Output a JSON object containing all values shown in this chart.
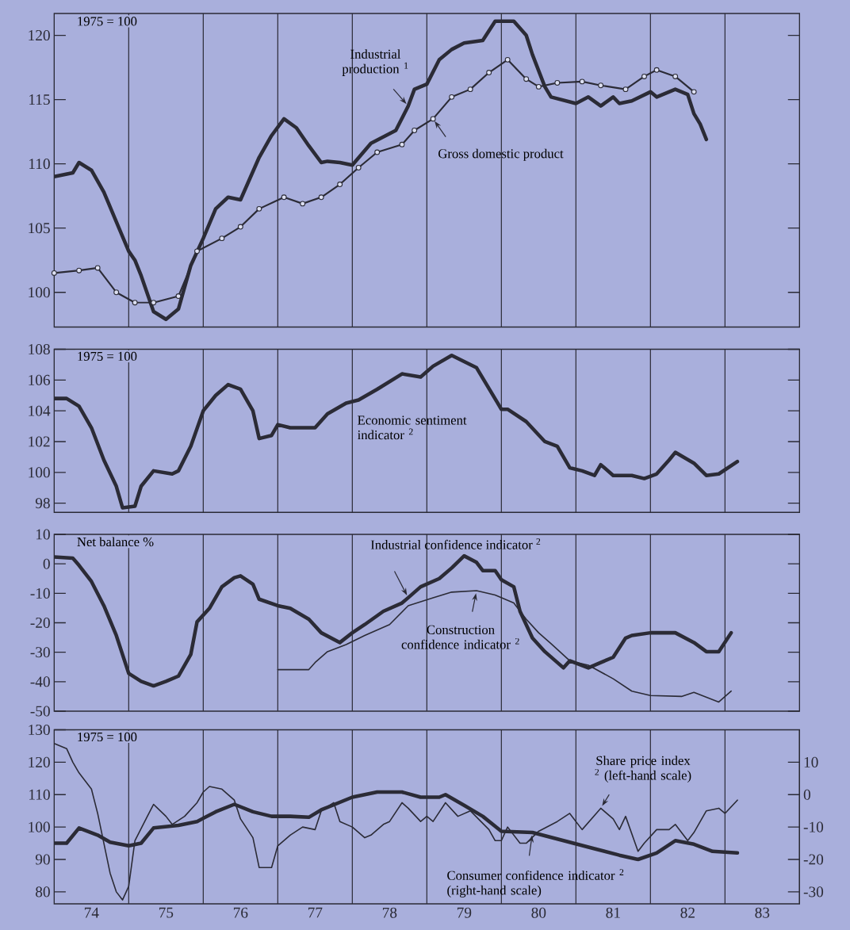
{
  "chart_data": [
    {
      "type": "line",
      "xlim": [
        "1974-01-01",
        "1984-01-01"
      ],
      "ylim": [
        97.3,
        121.7
      ],
      "yticks": [
        100,
        105,
        110,
        115,
        120
      ],
      "tick_labels": "y",
      "ref_lines": [
        {
          "axis": "x",
          "value": "1975-01-01"
        },
        {
          "axis": "x",
          "value": "1976-01-01"
        },
        {
          "axis": "x",
          "value": "1977-01-01"
        },
        {
          "axis": "x",
          "value": "1978-01-01"
        },
        {
          "axis": "x",
          "value": "1979-01-01"
        },
        {
          "axis": "x",
          "value": "1980-01-01"
        },
        {
          "axis": "x",
          "value": "1981-01-01"
        },
        {
          "axis": "x",
          "value": "1982-01-01"
        },
        {
          "axis": "x",
          "value": "1983-01-01"
        }
      ],
      "annotations": [
        "1975 = 100"
      ],
      "series": [
        {
          "name": "Industrial production $^{1}$",
          "color": "#2b2b36",
          "x": [
            "1974-01",
            "1974-04",
            "1974-05",
            "1974-07",
            "1974-09",
            "1974-11",
            "1975-01",
            "1975-02",
            "1975-03",
            "1975-05",
            "1975-07",
            "1975-09",
            "1975-11",
            "1976-01",
            "1976-03",
            "1976-05",
            "1976-07",
            "1976-10",
            "1976-12",
            "1977-02",
            "1977-04",
            "1977-06",
            "1977-08",
            "1977-09",
            "1977-11",
            "1978-01",
            "1978-04",
            "1978-08",
            "1978-10",
            "1978-11",
            "1979-01",
            "1979-03",
            "1979-05",
            "1979-07",
            "1979-10",
            "1979-12",
            "1980-03",
            "1980-05",
            "1980-06",
            "1980-08",
            "1980-09",
            "1981-01",
            "1981-03",
            "1981-05",
            "1981-07",
            "1981-08",
            "1981-10",
            "1982-01",
            "1982-02",
            "1982-04",
            "1982-05",
            "1982-07",
            "1982-08",
            "1982-09",
            "1982-10"
          ],
          "values": [
            109.0,
            109.3,
            110.1,
            109.5,
            107.8,
            105.5,
            103.2,
            102.5,
            101.3,
            98.5,
            97.9,
            98.7,
            102.1,
            104.2,
            106.5,
            107.4,
            107.2,
            110.5,
            112.2,
            113.5,
            112.8,
            111.4,
            110.1,
            110.2,
            110.1,
            109.9,
            111.6,
            112.6,
            114.5,
            115.8,
            116.2,
            118.1,
            118.9,
            119.4,
            119.6,
            121.1,
            121.1,
            120.0,
            118.5,
            116.0,
            115.2,
            114.7,
            115.2,
            114.5,
            115.2,
            114.7,
            114.9,
            115.6,
            115.2,
            115.6,
            115.8,
            115.4,
            113.9,
            113.1,
            111.9
          ]
        },
        {
          "name": "Gross domestic product",
          "color": "#2b2b36",
          "marker": "circle",
          "x": [
            "1974-01",
            "1974-05",
            "1974-08",
            "1974-11",
            "1975-02",
            "1975-05",
            "1975-09",
            "1975-12",
            "1976-04",
            "1976-07",
            "1976-10",
            "1977-02",
            "1977-05",
            "1977-08",
            "1977-11",
            "1978-02",
            "1978-05",
            "1978-09",
            "1978-11",
            "1979-02",
            "1979-05",
            "1979-08",
            "1979-11",
            "1980-02",
            "1980-05",
            "1980-07",
            "1980-10",
            "1981-02",
            "1981-05",
            "1981-09",
            "1981-12",
            "1982-02",
            "1982-05",
            "1982-08"
          ],
          "values": [
            101.5,
            101.7,
            101.9,
            100.0,
            99.2,
            99.2,
            99.7,
            103.2,
            104.2,
            105.1,
            106.5,
            107.4,
            106.9,
            107.4,
            108.4,
            109.7,
            110.9,
            111.5,
            112.6,
            113.5,
            115.2,
            115.8,
            117.1,
            118.1,
            116.6,
            116.0,
            116.3,
            116.4,
            116.1,
            115.8,
            116.8,
            117.3,
            116.8,
            115.6
          ]
        }
      ]
    },
    {
      "type": "line",
      "xlim": [
        "1974-01-01",
        "1984-01-01"
      ],
      "ylim": [
        97.4,
        108
      ],
      "yticks": [
        98,
        100,
        102,
        104,
        106,
        108
      ],
      "tick_labels": "y",
      "ref_lines": [
        {
          "axis": "x",
          "value": "1975-01-01"
        },
        {
          "axis": "x",
          "value": "1976-01-01"
        },
        {
          "axis": "x",
          "value": "1977-01-01"
        },
        {
          "axis": "x",
          "value": "1978-01-01"
        },
        {
          "axis": "x",
          "value": "1979-01-01"
        },
        {
          "axis": "x",
          "value": "1980-01-01"
        },
        {
          "axis": "x",
          "value": "1981-01-01"
        },
        {
          "axis": "x",
          "value": "1982-01-01"
        },
        {
          "axis": "x",
          "value": "1983-01-01"
        }
      ],
      "annotations": [
        "1975 = 100"
      ],
      "series": [
        {
          "name": "Economic sentiment indicator $^{2}$",
          "color": "#2b2b36",
          "x": [
            "1974-01",
            "1974-03",
            "1974-05",
            "1974-07",
            "1974-09",
            "1974-11",
            "1974-12",
            "1975-02",
            "1975-03",
            "1975-05",
            "1975-08",
            "1975-09",
            "1975-11",
            "1976-01",
            "1976-03",
            "1976-05",
            "1976-07",
            "1976-09",
            "1976-10",
            "1976-12",
            "1977-01",
            "1977-03",
            "1977-07",
            "1977-09",
            "1977-12",
            "1978-02",
            "1978-05",
            "1978-09",
            "1978-12",
            "1979-02",
            "1979-05",
            "1979-09",
            "1980-01",
            "1980-02",
            "1980-05",
            "1980-08",
            "1980-10",
            "1980-12",
            "1981-02",
            "1981-04",
            "1981-05",
            "1981-07",
            "1981-10",
            "1981-12",
            "1982-02",
            "1982-04",
            "1982-05",
            "1982-08",
            "1982-10",
            "1982-12",
            "1983-03"
          ],
          "values": [
            104.8,
            104.8,
            104.3,
            102.9,
            100.8,
            99.1,
            97.7,
            97.8,
            99.1,
            100.1,
            99.9,
            100.1,
            101.7,
            104.0,
            105.0,
            105.7,
            105.4,
            104.0,
            102.2,
            102.4,
            103.1,
            102.9,
            102.9,
            103.8,
            104.5,
            104.7,
            105.4,
            106.4,
            106.2,
            106.9,
            107.6,
            106.8,
            104.1,
            104.1,
            103.3,
            102.0,
            101.7,
            100.3,
            100.1,
            99.8,
            100.5,
            99.8,
            99.8,
            99.6,
            99.9,
            100.8,
            101.3,
            100.6,
            99.8,
            99.9,
            100.7
          ]
        }
      ]
    },
    {
      "type": "line",
      "xlim": [
        "1974-01-01",
        "1984-01-01"
      ],
      "ylim": [
        -50,
        10
      ],
      "yticks": [
        -50,
        -40,
        -30,
        -20,
        -10,
        0,
        10
      ],
      "tick_labels": "y",
      "ref_lines": [
        {
          "axis": "x",
          "value": "1975-01-01"
        },
        {
          "axis": "x",
          "value": "1976-01-01"
        },
        {
          "axis": "x",
          "value": "1977-01-01"
        },
        {
          "axis": "x",
          "value": "1978-01-01"
        },
        {
          "axis": "x",
          "value": "1979-01-01"
        },
        {
          "axis": "x",
          "value": "1980-01-01"
        },
        {
          "axis": "x",
          "value": "1981-01-01"
        },
        {
          "axis": "x",
          "value": "1982-01-01"
        },
        {
          "axis": "x",
          "value": "1983-01-01"
        }
      ],
      "annotations": [
        "Net balance %"
      ],
      "series": [
        {
          "name": "Industrial confidence indicator $^{2}$",
          "color": "#2b2b36",
          "x": [
            "1974-01",
            "1974-04",
            "1974-05",
            "1974-07",
            "1974-09",
            "1974-11",
            "1975-01",
            "1975-03",
            "1975-05",
            "1975-07",
            "1975-09",
            "1975-11",
            "1975-12",
            "1976-02",
            "1976-04",
            "1976-06",
            "1976-07",
            "1976-09",
            "1976-10",
            "1977-01",
            "1977-03",
            "1977-06",
            "1977-08",
            "1977-11",
            "1978-01",
            "1978-03",
            "1978-06",
            "1978-09",
            "1978-10",
            "1978-12",
            "1979-03",
            "1979-05",
            "1979-07",
            "1979-09",
            "1979-10",
            "1979-12",
            "1980-01",
            "1980-03",
            "1980-04",
            "1980-06",
            "1980-08",
            "1980-11",
            "1980-12",
            "1981-03",
            "1981-05",
            "1981-07",
            "1981-09",
            "1981-10",
            "1982-01",
            "1982-03",
            "1982-05",
            "1982-08",
            "1982-10",
            "1982-12",
            "1983-02"
          ],
          "values": [
            2.3,
            1.9,
            -0.5,
            -6,
            -14.2,
            -24.3,
            -37.2,
            -39.9,
            -41.4,
            -39.9,
            -38.1,
            -30.7,
            -19.7,
            -15.1,
            -7.8,
            -4.7,
            -4.1,
            -6.9,
            -12.0,
            -14.2,
            -15.1,
            -18.8,
            -23.4,
            -26.7,
            -23.4,
            -20.6,
            -16.1,
            -13.3,
            -11.5,
            -7.8,
            -5.0,
            -1.4,
            2.7,
            0.5,
            -2.3,
            -2.3,
            -5.4,
            -7.8,
            -16.1,
            -25.2,
            -29.8,
            -35.3,
            -32.9,
            -35.3,
            -33.5,
            -31.7,
            -25.2,
            -24.3,
            -23.4,
            -23.4,
            -23.4,
            -26.7,
            -29.8,
            -29.8,
            -23.4
          ]
        },
        {
          "name": "Construction confidence indicator $^{2}$",
          "color": "#2b2b36",
          "x": [
            "1977-01",
            "1977-06",
            "1977-07",
            "1977-09",
            "1977-12",
            "1978-03",
            "1978-07",
            "1978-10",
            "1979-02",
            "1979-05",
            "1979-09",
            "1979-12",
            "1980-03",
            "1980-05",
            "1980-07",
            "1980-09",
            "1980-12",
            "1981-03",
            "1981-07",
            "1981-10",
            "1982-01",
            "1982-06",
            "1982-08",
            "1982-12",
            "1983-02"
          ],
          "values": [
            -35.9,
            -35.9,
            -33.5,
            -29.8,
            -27.4,
            -24.3,
            -20.6,
            -14.2,
            -11.5,
            -9.6,
            -9.1,
            -10.6,
            -13.3,
            -18.8,
            -23.4,
            -27.1,
            -32.9,
            -34.4,
            -39.0,
            -43.2,
            -44.7,
            -45.0,
            -43.6,
            -46.9,
            -43.2
          ]
        }
      ]
    },
    {
      "type": "line",
      "xlim": [
        "1974-01-01",
        "1984-01-01"
      ],
      "ylim": [
        76.3,
        130
      ],
      "yticks": [
        80,
        90,
        100,
        110,
        120,
        130
      ],
      "y2lim": [
        -33.7,
        20
      ],
      "y2ticks": [
        -30,
        -20,
        -10,
        0,
        10
      ],
      "xticks": [
        {
          "value": "1974-07-01",
          "label": "74"
        },
        {
          "value": "1975-07-01",
          "label": "75"
        },
        {
          "value": "1976-07-01",
          "label": "76"
        },
        {
          "value": "1977-07-01",
          "label": "77"
        },
        {
          "value": "1978-07-01",
          "label": "78"
        },
        {
          "value": "1979-07-01",
          "label": "79"
        },
        {
          "value": "1980-07-01",
          "label": "80"
        },
        {
          "value": "1981-07-01",
          "label": "81"
        },
        {
          "value": "1982-07-01",
          "label": "82"
        },
        {
          "value": "1983-07-01",
          "label": "83"
        }
      ],
      "ref_lines": [
        {
          "axis": "x",
          "value": "1975-01-01"
        },
        {
          "axis": "x",
          "value": "1976-01-01"
        },
        {
          "axis": "x",
          "value": "1977-01-01"
        },
        {
          "axis": "x",
          "value": "1978-01-01"
        },
        {
          "axis": "x",
          "value": "1979-01-01"
        },
        {
          "axis": "x",
          "value": "1980-01-01"
        },
        {
          "axis": "x",
          "value": "1981-01-01"
        },
        {
          "axis": "x",
          "value": "1982-01-01"
        },
        {
          "axis": "x",
          "value": "1983-01-01"
        }
      ],
      "annotations": [
        "1975 = 100"
      ],
      "series": [
        {
          "name": "Share price index $^{2}$ (left-hand scale)",
          "color": "#2b2b36",
          "x": [
            "1974-01",
            "1974-03",
            "1974-04",
            "1974-05",
            "1974-07",
            "1974-08",
            "1974-09",
            "1974-10",
            "1974-11",
            "1974-12",
            "1975-01",
            "1975-02",
            "1975-04",
            "1975-05",
            "1975-07",
            "1975-08",
            "1975-10",
            "1975-12",
            "1976-01",
            "1976-02",
            "1976-04",
            "1976-06",
            "1976-07",
            "1976-09",
            "1976-10",
            "1976-12",
            "1977-01",
            "1977-03",
            "1977-05",
            "1977-07",
            "1977-08",
            "1977-10",
            "1977-11",
            "1978-01",
            "1978-03",
            "1978-04",
            "1978-06",
            "1978-07",
            "1978-09",
            "1978-10",
            "1978-12",
            "1979-01",
            "1979-02",
            "1979-04",
            "1979-06",
            "1979-08",
            "1979-11",
            "1979-12",
            "1980-01",
            "1980-02",
            "1980-04",
            "1980-05",
            "1980-07",
            "1980-10",
            "1980-12",
            "1981-02",
            "1981-05",
            "1981-07",
            "1981-08",
            "1981-09",
            "1981-11",
            "1981-12",
            "1982-02",
            "1982-04",
            "1982-05",
            "1982-07",
            "1982-08",
            "1982-10",
            "1982-12",
            "1983-01",
            "1983-03"
          ],
          "values": [
            125.8,
            124.2,
            120,
            116.7,
            111.7,
            104.2,
            95,
            85.8,
            80,
            77.5,
            81.7,
            95.8,
            103.3,
            107,
            103.3,
            100.8,
            103.3,
            107.5,
            110.8,
            112.5,
            111.7,
            108.3,
            102.5,
            96.7,
            87.5,
            87.5,
            94.2,
            97.5,
            100,
            99.2,
            105,
            107.5,
            101.7,
            100,
            96.7,
            97.5,
            100.8,
            101.7,
            107.5,
            105.8,
            101.7,
            103.3,
            101.7,
            107.5,
            103.3,
            105,
            99.2,
            95.8,
            95.8,
            100,
            95,
            95,
            98.7,
            101.7,
            104.2,
            99.2,
            105.8,
            102.5,
            99.2,
            103.3,
            92.5,
            95,
            99.2,
            99.2,
            100.8,
            95.8,
            98.3,
            105,
            105.8,
            104.2,
            108.3
          ]
        },
        {
          "name": "Consumer confidence indicator $^{2}$ (right-hand scale)",
          "color": "#2b2b36",
          "axis": "y2",
          "x": [
            "1974-01",
            "1974-03",
            "1974-05",
            "1974-08",
            "1974-10",
            "1975-01",
            "1975-03",
            "1975-05",
            "1975-09",
            "1975-12",
            "1976-03",
            "1976-06",
            "1976-09",
            "1976-12",
            "1977-03",
            "1977-06",
            "1977-08",
            "1978-01",
            "1978-05",
            "1978-09",
            "1978-12",
            "1979-03",
            "1979-04",
            "1979-07",
            "1979-10",
            "1980-01",
            "1980-06",
            "1980-11",
            "1981-04",
            "1981-08",
            "1981-11",
            "1982-02",
            "1982-05",
            "1982-08",
            "1982-11",
            "1983-03"
          ],
          "values": [
            -15,
            -15,
            -10.3,
            -12.5,
            -14.7,
            -15.8,
            -15,
            -10.3,
            -9.5,
            -8.3,
            -5.3,
            -3,
            -5.3,
            -6.7,
            -6.7,
            -7,
            -4.7,
            -0.8,
            0.8,
            0.8,
            -0.8,
            -0.8,
            0,
            -3.3,
            -6.7,
            -11.3,
            -11.7,
            -14.2,
            -16.7,
            -18.7,
            -20,
            -18,
            -14.2,
            -15.3,
            -17.5,
            -18
          ]
        }
      ]
    }
  ]
}
